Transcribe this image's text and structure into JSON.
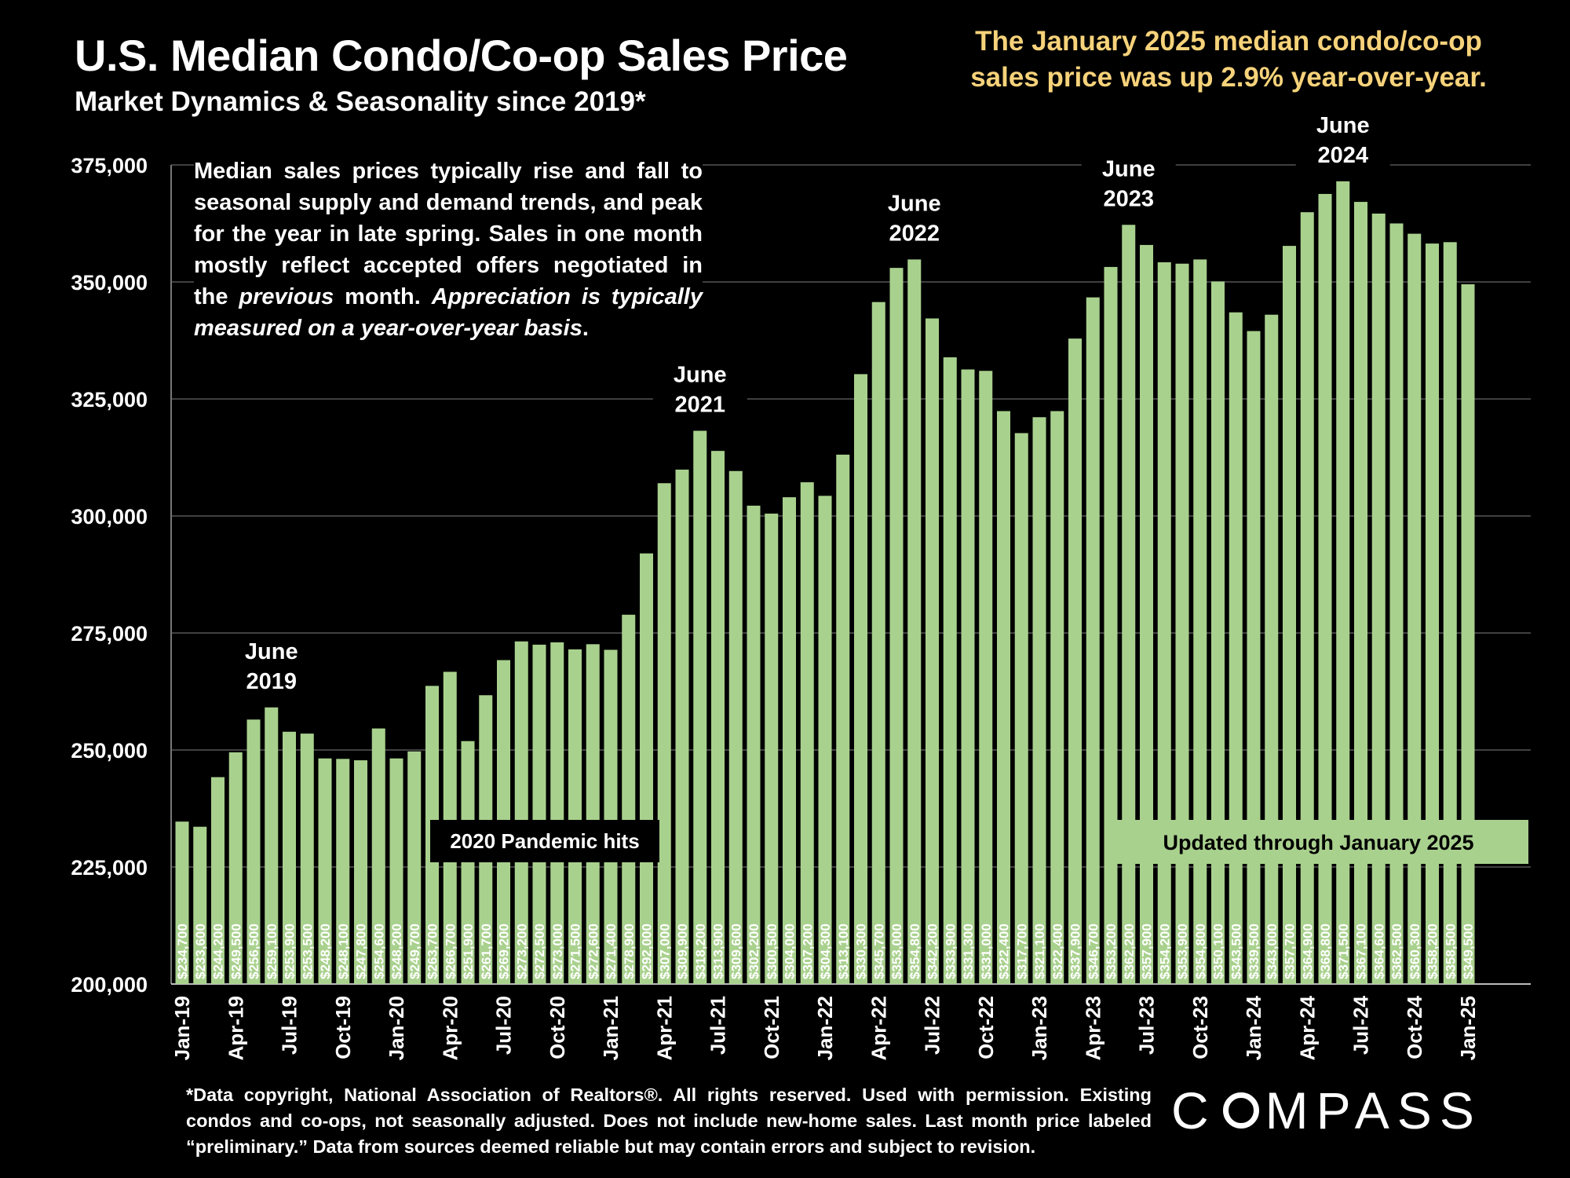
{
  "header": {
    "title": "U.S. Median Condo/Co-op Sales Price",
    "subtitle": "Market Dynamics & Seasonality since 2019*",
    "callout_line1": "The January 2025 median condo/co-op",
    "callout_line2": "sales price was up 2.9% year-over-year."
  },
  "note": {
    "part1": "Median sales prices typically rise and fall to seasonal supply and demand trends, and peak for the year in late spring. Sales in one month mostly reflect accepted offers negotiated in the ",
    "part2_italic": "previous",
    "part3": " month. ",
    "part4_italic": "Appreciation is typically measured on a year-over-year basis",
    "part5": "."
  },
  "footer": {
    "text": "*Data copyright, National Association of Realtors®. All rights reserved. Used with permission. Existing condos and co-ops, not seasonally adjusted. Does not include new-home sales. Last month price labeled “preliminary.” Data from sources deemed reliable but may contain errors and subject to revision."
  },
  "logo": {
    "before": "C",
    "after": "MPASS"
  },
  "colors": {
    "bar": "#a9d18e",
    "background": "#000000",
    "callout": "#f6d27a",
    "grid": "#555555"
  },
  "chart_data": {
    "type": "bar",
    "title": "U.S. Median Condo/Co-op Sales Price",
    "ylim": [
      200000,
      375000
    ],
    "yticks": [
      "200,000",
      "225,000",
      "250,000",
      "275,000",
      "300,000",
      "325,000",
      "350,000",
      "375,000"
    ],
    "ytick_values": [
      200000,
      225000,
      250000,
      275000,
      300000,
      325000,
      350000,
      375000
    ],
    "categories": [
      "Jan-19",
      "Feb-19",
      "Mar-19",
      "Apr-19",
      "May-19",
      "Jun-19",
      "Jul-19",
      "Aug-19",
      "Sep-19",
      "Oct-19",
      "Nov-19",
      "Dec-19",
      "Jan-20",
      "Feb-20",
      "Mar-20",
      "Apr-20",
      "May-20",
      "Jun-20",
      "Jul-20",
      "Aug-20",
      "Sep-20",
      "Oct-20",
      "Nov-20",
      "Dec-20",
      "Jan-21",
      "Feb-21",
      "Mar-21",
      "Apr-21",
      "May-21",
      "Jun-21",
      "Jul-21",
      "Aug-21",
      "Sep-21",
      "Oct-21",
      "Nov-21",
      "Dec-21",
      "Jan-22",
      "Feb-22",
      "Mar-22",
      "Apr-22",
      "May-22",
      "Jun-22",
      "Jul-22",
      "Aug-22",
      "Sep-22",
      "Oct-22",
      "Nov-22",
      "Dec-22",
      "Jan-23",
      "Feb-23",
      "Mar-23",
      "Apr-23",
      "May-23",
      "Jun-23",
      "Jul-23",
      "Aug-23",
      "Sep-23",
      "Oct-23",
      "Nov-23",
      "Dec-23",
      "Jan-24",
      "Feb-24",
      "Mar-24",
      "Apr-24",
      "May-24",
      "Jun-24",
      "Jul-24",
      "Aug-24",
      "Sep-24",
      "Oct-24",
      "Nov-24",
      "Dec-24",
      "Jan-25"
    ],
    "xtick_labels": [
      "Jan-19",
      "Apr-19",
      "Jul-19",
      "Oct-19",
      "Jan-20",
      "Apr-20",
      "Jul-20",
      "Oct-20",
      "Jan-21",
      "Apr-21",
      "Jul-21",
      "Oct-21",
      "Jan-22",
      "Apr-22",
      "Jul-22",
      "Oct-22",
      "Jan-23",
      "Apr-23",
      "Jul-23",
      "Oct-23",
      "Jan-24",
      "Apr-24",
      "Jul-24",
      "Oct-24",
      "Jan-25"
    ],
    "values": [
      234700,
      233600,
      244200,
      249500,
      256500,
      259100,
      253900,
      253500,
      248200,
      248100,
      247800,
      254600,
      248200,
      249700,
      263700,
      266700,
      251900,
      261700,
      269200,
      273200,
      272500,
      273000,
      271500,
      272600,
      271400,
      278900,
      292000,
      307000,
      309900,
      318200,
      313900,
      309600,
      302200,
      300500,
      304000,
      307200,
      304300,
      313100,
      330300,
      345700,
      353000,
      354800,
      342200,
      333900,
      331300,
      331000,
      322400,
      317700,
      321100,
      322400,
      337900,
      346700,
      353200,
      362200,
      357900,
      354200,
      353900,
      354800,
      350100,
      343500,
      339500,
      343000,
      357700,
      364900,
      368800,
      371500,
      367100,
      364600,
      362500,
      360300,
      358200,
      358500,
      349500
    ],
    "data_labels": [
      "$234,700",
      "$233,600",
      "$244,200",
      "$249,500",
      "$256,500",
      "$259,100",
      "$253,900",
      "$253,500",
      "$248,200",
      "$248,100",
      "$247,800",
      "$254,600",
      "$248,200",
      "$249,700",
      "$263,700",
      "$266,700",
      "$251,900",
      "$261,700",
      "$269,200",
      "$273,200",
      "$272,500",
      "$273,000",
      "$271,500",
      "$272,600",
      "$271,400",
      "$278,900",
      "$292,000",
      "$307,000",
      "$309,900",
      "$318,200",
      "$313,900",
      "$309,600",
      "$302,200",
      "$300,500",
      "$304,000",
      "$307,200",
      "$304,300",
      "$313,100",
      "$330,300",
      "$345,700",
      "$353,000",
      "$354,800",
      "$342,200",
      "$333,900",
      "$331,300",
      "$331,000",
      "$322,400",
      "$317,700",
      "$321,100",
      "$322,400",
      "$337,900",
      "$346,700",
      "$353,200",
      "$362,200",
      "$357,900",
      "$354,200",
      "$353,900",
      "$354,800",
      "$350,100",
      "$343,500",
      "$339,500",
      "$343,000",
      "$357,700",
      "$364,900",
      "$368,800",
      "$371,500",
      "$367,100",
      "$364,600",
      "$362,500",
      "$360,300",
      "$358,200",
      "$358,500",
      "$349,500"
    ],
    "annotations": [
      {
        "text_lines": [
          "June",
          "2019"
        ],
        "index": 5
      },
      {
        "text_lines": [
          "June",
          "2021"
        ],
        "index": 29
      },
      {
        "text_lines": [
          "June",
          "2022"
        ],
        "index": 41
      },
      {
        "text_lines": [
          "June",
          "2023"
        ],
        "index": 53
      },
      {
        "text_lines": [
          "June",
          "2024"
        ],
        "index": 65
      }
    ],
    "boxed_labels": [
      {
        "text": "2020 Pandemic hits",
        "index": 20
      },
      {
        "text": "Updated through January 2025",
        "index": 62
      }
    ]
  }
}
